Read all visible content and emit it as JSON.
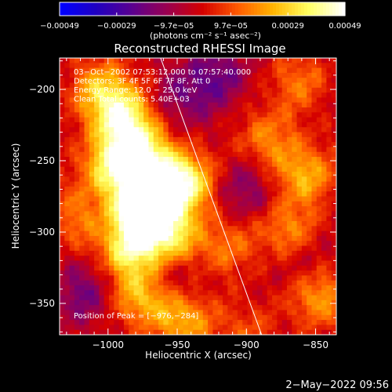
{
  "chart_data": {
    "type": "heatmap",
    "title": "Reconstructed RHESSI Image",
    "xlabel": "Heliocentric X (arcsec)",
    "ylabel": "Heliocentric Y (arcsec)",
    "xlim": [
      -1035,
      -835
    ],
    "ylim": [
      -372,
      -178
    ],
    "x_ticks": [
      {
        "value": -1000,
        "label": "−1000"
      },
      {
        "value": -950,
        "label": "−950"
      },
      {
        "value": -900,
        "label": "−900"
      },
      {
        "value": -850,
        "label": "−850"
      }
    ],
    "y_ticks": [
      {
        "value": -200,
        "label": "−200"
      },
      {
        "value": -250,
        "label": "−250"
      },
      {
        "value": -300,
        "label": "−300"
      },
      {
        "value": -350,
        "label": "−350"
      }
    ],
    "colorbar": {
      "min": -0.00049,
      "max": 0.00049,
      "tick_labels": [
        "−0.00049",
        "−0.00029",
        "−9.7e−05",
        "9.7e−05",
        "0.00029",
        "0.00049"
      ],
      "unit_label": "(photons cm⁻² s⁻¹ asec⁻²)",
      "colors": [
        "#0000ff",
        "#2000c0",
        "#5a0090",
        "#9a0050",
        "#d40000",
        "#ff5a00",
        "#ffb400",
        "#ffff60",
        "#ffffff"
      ]
    },
    "annotations": [
      "03−Oct−2002 07:53:12.000 to 07:57:40.000",
      "Detectors: 3F 4F 5F 6F 7F 8F, Att 0",
      "Energy Range: 12.0 − 25.0 keV",
      "Clean    Total counts: 5.40E+03"
    ],
    "peak_label": "Position of Peak = [−976,−284]",
    "limb_line": {
      "x": [
        -962,
        -889
      ],
      "y": [
        -178,
        -372
      ]
    },
    "bright_regions": [
      {
        "x": -1005,
        "y": -200,
        "level": 0.55
      },
      {
        "x": -990,
        "y": -220,
        "level": 0.8
      },
      {
        "x": -1000,
        "y": -255,
        "level": 0.6
      },
      {
        "x": -978,
        "y": -245,
        "level": 0.9
      },
      {
        "x": -966,
        "y": -273,
        "level": 0.8
      },
      {
        "x": -945,
        "y": -265,
        "level": 0.85
      },
      {
        "x": -976,
        "y": -284,
        "level": 1.0
      },
      {
        "x": -985,
        "y": -312,
        "level": 0.75
      },
      {
        "x": -955,
        "y": -305,
        "level": 0.7
      },
      {
        "x": -975,
        "y": -345,
        "level": 0.6
      },
      {
        "x": -945,
        "y": -362,
        "level": 0.55
      },
      {
        "x": -1025,
        "y": -290,
        "level": 0.35
      },
      {
        "x": -915,
        "y": -310,
        "level": 0.35
      },
      {
        "x": -885,
        "y": -235,
        "level": 0.4
      },
      {
        "x": -862,
        "y": -195,
        "level": 0.35
      },
      {
        "x": -858,
        "y": -260,
        "level": 0.55
      },
      {
        "x": -870,
        "y": -300,
        "level": 0.45
      },
      {
        "x": -848,
        "y": -345,
        "level": 0.5
      },
      {
        "x": -900,
        "y": -370,
        "level": 0.25
      }
    ],
    "dark_regions": [
      {
        "x": -945,
        "y": -205,
        "level": -0.3
      },
      {
        "x": -920,
        "y": -190,
        "level": -0.35
      },
      {
        "x": -1018,
        "y": -342,
        "level": -0.35
      },
      {
        "x": -955,
        "y": -330,
        "level": -0.3
      },
      {
        "x": -900,
        "y": -270,
        "level": -0.3
      },
      {
        "x": -860,
        "y": -320,
        "level": -0.2
      }
    ]
  },
  "footer": {
    "timestamp": "2−May−2022 09:56"
  }
}
